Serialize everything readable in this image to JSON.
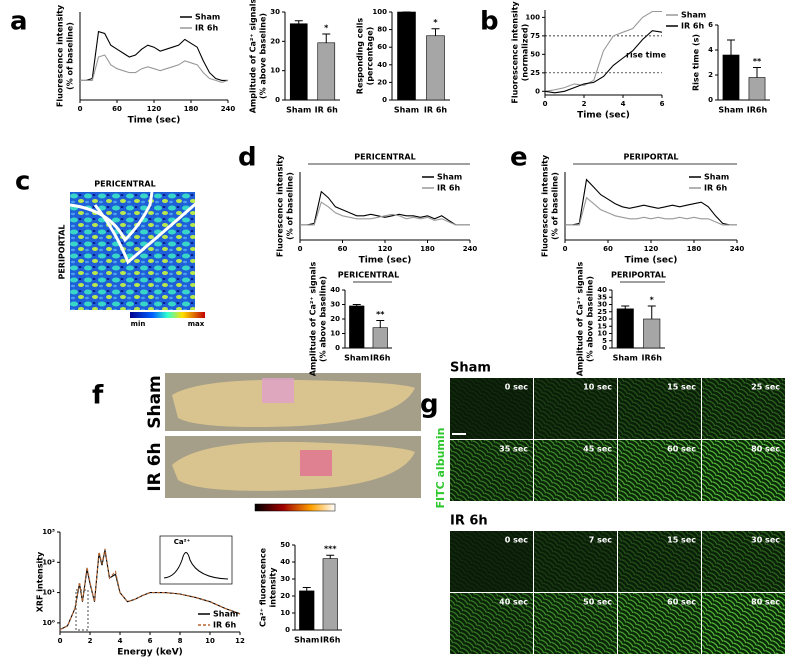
{
  "chart_data": [
    {
      "type": "line",
      "ylabel": [
        "Fluorescence intensity",
        "(% of baseline)"
      ],
      "xlabel": "Time (sec)",
      "x": [
        0,
        10,
        20,
        30,
        40,
        50,
        60,
        70,
        80,
        90,
        100,
        110,
        120,
        130,
        140,
        150,
        160,
        170,
        180,
        190,
        200,
        210,
        220,
        230,
        240
      ],
      "xlim": [
        0,
        240
      ],
      "xticks": [
        0,
        60,
        120,
        180,
        240
      ],
      "ylim": [
        90,
        135
      ],
      "legend": "upper right",
      "series": [
        {
          "name": "Sham",
          "color": "#000000",
          "values": [
            100,
            100,
            101,
            125,
            124,
            118,
            116,
            114,
            112,
            113,
            116,
            118,
            117,
            115,
            116,
            117,
            118,
            121,
            119,
            117,
            110,
            104,
            101,
            100,
            100
          ]
        },
        {
          "name": "IR 6h",
          "color": "#999999",
          "values": [
            100,
            100,
            100,
            112,
            113,
            108,
            106,
            105,
            104,
            104,
            106,
            107,
            106,
            105,
            106,
            107,
            108,
            110,
            109,
            108,
            104,
            101,
            100,
            99,
            100
          ]
        }
      ]
    },
    {
      "type": "bar",
      "ylabel": [
        "Amplitude of Ca²⁺ signals",
        "(% above baseline)"
      ],
      "categories": [
        "Sham",
        "IR 6h"
      ],
      "values": [
        26,
        19.5
      ],
      "errors": [
        1,
        3
      ],
      "colors": [
        "#000000",
        "#a6a6a6"
      ],
      "ylim": [
        0,
        30
      ],
      "yticks": [
        0,
        10,
        20,
        30
      ],
      "significance": "*"
    },
    {
      "type": "bar",
      "ylabel": [
        "Responding cells",
        "(percentage)"
      ],
      "categories": [
        "Sham",
        "IR 6h"
      ],
      "values": [
        100,
        73
      ],
      "errors": [
        0,
        8
      ],
      "colors": [
        "#000000",
        "#a6a6a6"
      ],
      "ylim": [
        0,
        100
      ],
      "yticks": [
        0,
        20,
        40,
        60,
        80,
        100
      ],
      "significance": "*"
    },
    {
      "type": "line",
      "ylabel": [
        "Fluorescence intensity",
        "(normalized)"
      ],
      "xlabel": "Time (sec)",
      "x": [
        0,
        0.5,
        1,
        1.5,
        2,
        2.5,
        3,
        3.5,
        4,
        4.5,
        5,
        5.5,
        6
      ],
      "xlim": [
        0,
        6
      ],
      "xticks": [
        0,
        2,
        4,
        6
      ],
      "ylim": [
        -5,
        110
      ],
      "yticks": [
        0,
        25,
        50,
        75,
        100
      ],
      "legend": "outside right",
      "hlines": [
        25,
        75
      ],
      "annotation": "rise time",
      "series": [
        {
          "name": "Sham",
          "color": "#999999",
          "values": [
            0,
            2,
            5,
            10,
            8,
            15,
            55,
            75,
            80,
            85,
            100,
            108,
            108
          ]
        },
        {
          "name": "IR 6h",
          "color": "#000000",
          "values": [
            0,
            -2,
            0,
            5,
            10,
            12,
            20,
            35,
            45,
            55,
            70,
            82,
            80
          ]
        }
      ]
    },
    {
      "type": "bar",
      "ylabel": [
        "Rise time (s)"
      ],
      "categories": [
        "Sham",
        "IR6h"
      ],
      "values": [
        3.6,
        1.8
      ],
      "errors": [
        1.2,
        0.8
      ],
      "colors": [
        "#000000",
        "#a6a6a6"
      ],
      "ylim": [
        0,
        6
      ],
      "yticks": [
        0,
        2,
        4,
        6
      ],
      "significance": "**"
    },
    {
      "type": "line",
      "title": "PERICENTRAL",
      "ylabel": [
        "Fluorescence intensity",
        "(% of baseline)"
      ],
      "xlabel": "Time (sec)",
      "x": [
        0,
        10,
        20,
        30,
        40,
        50,
        60,
        70,
        80,
        90,
        100,
        110,
        120,
        130,
        140,
        150,
        160,
        170,
        180,
        190,
        200,
        210,
        220,
        230,
        240
      ],
      "xlim": [
        0,
        240
      ],
      "xticks": [
        0,
        60,
        120,
        180,
        240
      ],
      "ylim": [
        90,
        135
      ],
      "legend": "upper right",
      "series": [
        {
          "name": "Sham",
          "color": "#000000",
          "values": [
            100,
            100,
            101,
            122,
            118,
            112,
            110,
            108,
            106,
            106,
            107,
            106,
            105,
            106,
            107,
            106,
            106,
            105,
            106,
            104,
            106,
            103,
            100,
            100,
            100
          ]
        },
        {
          "name": "IR 6h",
          "color": "#999999",
          "values": [
            100,
            100,
            100,
            115,
            112,
            108,
            106,
            105,
            104,
            104,
            104,
            105,
            106,
            107,
            106,
            104,
            105,
            104,
            105,
            103,
            104,
            102,
            100,
            100,
            100
          ]
        }
      ]
    },
    {
      "type": "bar",
      "title": "PERICENTRAL",
      "ylabel": [
        "Amplitude of Ca²⁺ signals",
        "(% above baseline)"
      ],
      "categories": [
        "Sham",
        "IR6h"
      ],
      "values": [
        29,
        14
      ],
      "errors": [
        1,
        5
      ],
      "colors": [
        "#000000",
        "#a6a6a6"
      ],
      "ylim": [
        0,
        40
      ],
      "yticks": [
        0,
        10,
        20,
        30,
        40
      ],
      "significance": "**"
    },
    {
      "type": "line",
      "title": "PERIPORTAL",
      "ylabel": [
        "Fluorescence intensity",
        "(% of baseline)"
      ],
      "xlabel": "Time (sec)",
      "x": [
        0,
        10,
        20,
        30,
        40,
        50,
        60,
        70,
        80,
        90,
        100,
        110,
        120,
        130,
        140,
        150,
        160,
        170,
        180,
        190,
        200,
        210,
        220,
        230,
        240
      ],
      "xlim": [
        0,
        240
      ],
      "xticks": [
        0,
        60,
        120,
        180,
        240
      ],
      "ylim": [
        90,
        135
      ],
      "legend": "upper right",
      "series": [
        {
          "name": "Sham",
          "color": "#000000",
          "values": [
            100,
            100,
            101,
            130,
            125,
            120,
            117,
            114,
            112,
            111,
            112,
            113,
            112,
            111,
            112,
            113,
            112,
            113,
            114,
            115,
            112,
            106,
            101,
            100,
            100
          ]
        },
        {
          "name": "IR 6h",
          "color": "#999999",
          "values": [
            100,
            100,
            100,
            118,
            114,
            110,
            108,
            106,
            105,
            104,
            104,
            105,
            104,
            105,
            104,
            104,
            105,
            104,
            105,
            104,
            104,
            102,
            100,
            100,
            100
          ]
        }
      ]
    },
    {
      "type": "bar",
      "title": "PERIPORTAL",
      "ylabel": [
        "Amplitude of Ca²⁺ signals",
        "(% above baseline)"
      ],
      "categories": [
        "Sham",
        "IR6h"
      ],
      "values": [
        27,
        20
      ],
      "errors": [
        2,
        9
      ],
      "colors": [
        "#000000",
        "#a6a6a6"
      ],
      "ylim": [
        0,
        40
      ],
      "yticks": [
        0,
        5,
        10,
        15,
        20,
        25,
        30,
        35,
        40
      ],
      "significance": "*"
    },
    {
      "type": "line",
      "yscale": "log",
      "ylabel": [
        "XRF intensity"
      ],
      "xlabel": "Energy (keV)",
      "x": [
        0,
        0.5,
        1,
        1.3,
        1.5,
        1.8,
        2,
        2.3,
        2.6,
        2.8,
        3,
        3.3,
        3.7,
        4,
        4.5,
        5,
        5.5,
        6,
        7,
        8,
        9,
        10,
        11,
        12
      ],
      "xlim": [
        0,
        12
      ],
      "xticks": [
        0,
        2,
        4,
        6,
        8,
        10,
        12
      ],
      "ylim": [
        0.5,
        1000
      ],
      "yticks": [
        {
          "value": 1,
          "label": "10⁰"
        },
        {
          "value": 10,
          "label": "10¹"
        },
        {
          "value": 100,
          "label": "10²"
        },
        {
          "value": 1000,
          "label": "10³"
        }
      ],
      "legend": "lower right",
      "annotation": "Ca²⁺",
      "series": [
        {
          "name": "Sham",
          "color": "#000000",
          "style": "solid",
          "values": [
            0.6,
            0.8,
            3,
            20,
            5,
            60,
            20,
            5,
            200,
            80,
            250,
            30,
            40,
            10,
            5,
            6,
            8,
            10,
            10,
            9,
            7,
            5,
            3,
            2
          ]
        },
        {
          "name": "IR 6h",
          "color": "#b5652f",
          "style": "dashed",
          "values": [
            0.6,
            0.8,
            3,
            22,
            5,
            70,
            22,
            5,
            220,
            90,
            280,
            30,
            50,
            10,
            5,
            6,
            8,
            10,
            10,
            9,
            7,
            5,
            3,
            2
          ]
        }
      ]
    },
    {
      "type": "bar",
      "ylabel": [
        "Ca²⁺ fluorescence",
        "intensity"
      ],
      "categories": [
        "Sham",
        "IR6h"
      ],
      "values": [
        23,
        42
      ],
      "errors": [
        2,
        2
      ],
      "colors": [
        "#000000",
        "#a6a6a6"
      ],
      "ylim": [
        0,
        50
      ],
      "yticks": [
        0,
        10,
        20,
        30,
        40,
        50
      ],
      "significance": "***"
    }
  ],
  "figure": {
    "panel_letters": [
      "a",
      "b",
      "c",
      "d",
      "e",
      "f",
      "g"
    ],
    "c": {
      "top": "PERICENTRAL",
      "side": "PERIPORTAL",
      "scale": [
        "min",
        "max"
      ]
    },
    "f": {
      "images": [
        "Sham",
        "IR 6h"
      ]
    },
    "g": {
      "stain": "FITC albumin",
      "groups": [
        {
          "name": "Sham",
          "times": [
            "0 sec",
            "10 sec",
            "15 sec",
            "25 sec",
            "35 sec",
            "45 sec",
            "60 sec",
            "80 sec"
          ]
        },
        {
          "name": "IR 6h",
          "times": [
            "0 sec",
            "7 sec",
            "15 sec",
            "30 sec",
            "40 sec",
            "50 sec",
            "60 sec",
            "80 sec"
          ]
        }
      ]
    }
  }
}
